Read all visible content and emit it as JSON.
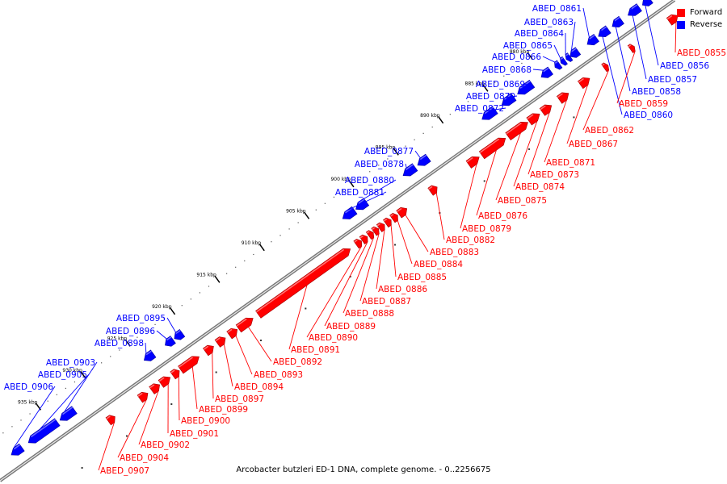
{
  "legend": {
    "forward": {
      "label": "Forward",
      "color": "#ff0000"
    },
    "reverse": {
      "label": "Reverse",
      "color": "#0000ff"
    }
  },
  "footer": "Arcobacter butzleri ED-1 DNA, complete genome. - 0..2256675",
  "scale_ticks": [
    "880 kbp",
    "885 kbp",
    "890 kbp",
    "895 kbp",
    "900 kbp",
    "905 kbp",
    "910 kbp",
    "915 kbp",
    "920 kbp",
    "925 kbp",
    "930 kbp",
    "935 kbp"
  ],
  "reverse_genes": [
    "ABED_0856",
    "ABED_0857",
    "ABED_0858",
    "ABED_0860",
    "ABED_0861",
    "ABED_0863",
    "ABED_0864",
    "ABED_0865",
    "ABED_0866",
    "ABED_0868",
    "ABED_0869",
    "ABED_0870",
    "ABED_0872",
    "ABED_0877",
    "ABED_0878",
    "ABED_0880",
    "ABED_0881",
    "ABED_0895",
    "ABED_0896",
    "ABED_0898",
    "ABED_0903",
    "ABED_0905",
    "ABED_0906"
  ],
  "forward_genes": [
    "ABED_0855",
    "ABED_0859",
    "ABED_0862",
    "ABED_0867",
    "ABED_0871",
    "ABED_0873",
    "ABED_0874",
    "ABED_0875",
    "ABED_0876",
    "ABED_0879",
    "ABED_0882",
    "ABED_0883",
    "ABED_0884",
    "ABED_0885",
    "ABED_0886",
    "ABED_0887",
    "ABED_0888",
    "ABED_0889",
    "ABED_0890",
    "ABED_0891",
    "ABED_0892",
    "ABED_0893",
    "ABED_0894",
    "ABED_0897",
    "ABED_0899",
    "ABED_0900",
    "ABED_0901",
    "ABED_0902",
    "ABED_0904",
    "ABED_0907"
  ]
}
